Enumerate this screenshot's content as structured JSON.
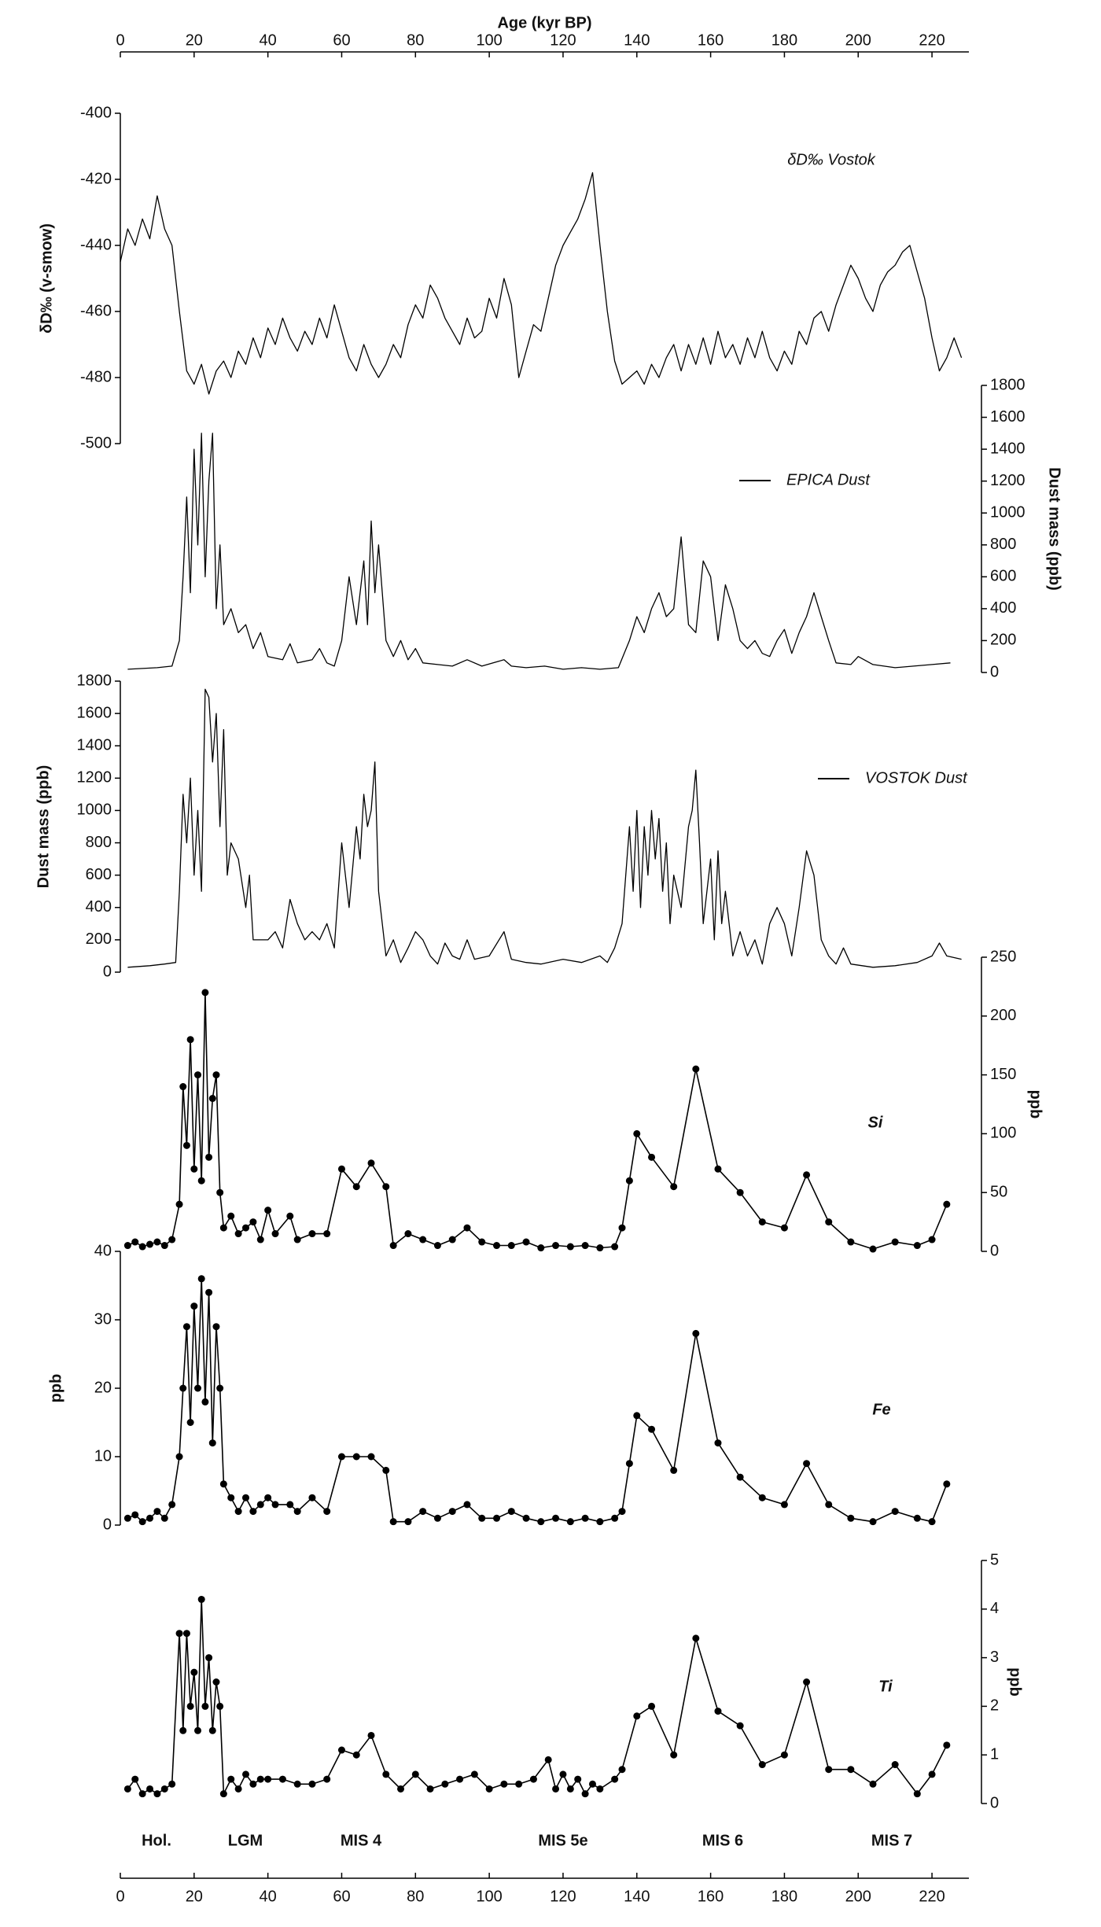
{
  "chart_data": [
    {
      "type": "line",
      "xlabel": "Age (kyr BP)",
      "xaxis_position": "top",
      "xlim": [
        0,
        230
      ],
      "xticks": [
        0,
        20,
        40,
        60,
        80,
        100,
        120,
        140,
        160,
        180,
        200,
        220
      ],
      "ylabel": "δD‰ (v-smow)",
      "y_axis_position": "left",
      "ylim": [
        -500,
        -400
      ],
      "yticks": [
        -400,
        -420,
        -440,
        -460,
        -480,
        -500
      ],
      "annotation": "δD‰ Vostok",
      "markers": false,
      "x": [
        0,
        2,
        4,
        6,
        8,
        10,
        12,
        14,
        16,
        18,
        20,
        22,
        24,
        26,
        28,
        30,
        32,
        34,
        36,
        38,
        40,
        42,
        44,
        46,
        48,
        50,
        52,
        54,
        56,
        58,
        60,
        62,
        64,
        66,
        68,
        70,
        72,
        74,
        76,
        78,
        80,
        82,
        84,
        86,
        88,
        90,
        92,
        94,
        96,
        98,
        100,
        102,
        104,
        106,
        108,
        110,
        112,
        114,
        116,
        118,
        120,
        122,
        124,
        126,
        128,
        130,
        132,
        134,
        136,
        138,
        140,
        142,
        144,
        146,
        148,
        150,
        152,
        154,
        156,
        158,
        160,
        162,
        164,
        166,
        168,
        170,
        172,
        174,
        176,
        178,
        180,
        182,
        184,
        186,
        188,
        190,
        192,
        194,
        196,
        198,
        200,
        202,
        204,
        206,
        208,
        210,
        212,
        214,
        216,
        218,
        220,
        222,
        224,
        226,
        228
      ],
      "series": [
        {
          "color": "#000000",
          "values": [
            -445,
            -435,
            -440,
            -432,
            -438,
            -425,
            -435,
            -440,
            -460,
            -478,
            -482,
            -476,
            -485,
            -478,
            -475,
            -480,
            -472,
            -476,
            -468,
            -474,
            -465,
            -470,
            -462,
            -468,
            -472,
            -466,
            -470,
            -462,
            -468,
            -458,
            -466,
            -474,
            -478,
            -470,
            -476,
            -480,
            -476,
            -470,
            -474,
            -464,
            -458,
            -462,
            -452,
            -456,
            -462,
            -466,
            -470,
            -462,
            -468,
            -466,
            -456,
            -462,
            -450,
            -458,
            -480,
            -472,
            -464,
            -466,
            -456,
            -446,
            -440,
            -436,
            -432,
            -426,
            -418,
            -440,
            -460,
            -475,
            -482,
            -480,
            -478,
            -482,
            -476,
            -480,
            -474,
            -470,
            -478,
            -470,
            -476,
            -468,
            -476,
            -466,
            -474,
            -470,
            -476,
            -468,
            -474,
            -466,
            -474,
            -478,
            -472,
            -476,
            -466,
            -470,
            -462,
            -460,
            -466,
            -458,
            -452,
            -446,
            -450,
            -456,
            -460,
            -452,
            -448,
            -446,
            -442,
            -440,
            -448,
            -456,
            -468,
            -478,
            -474,
            -468,
            -474
          ]
        }
      ]
    },
    {
      "type": "line",
      "xlim": [
        0,
        230
      ],
      "ylabel": "Dust mass (ppb)",
      "y_axis_position": "right",
      "ylim": [
        0,
        1800
      ],
      "yticks": [
        0,
        200,
        400,
        600,
        800,
        1000,
        1200,
        1400,
        1600,
        1800
      ],
      "markers": false,
      "x": [
        2,
        6,
        10,
        14,
        16,
        17,
        18,
        19,
        20,
        21,
        22,
        23,
        24,
        25,
        26,
        27,
        28,
        30,
        32,
        34,
        36,
        38,
        40,
        44,
        46,
        48,
        52,
        54,
        56,
        58,
        60,
        62,
        64,
        66,
        67,
        68,
        69,
        70,
        72,
        74,
        76,
        78,
        80,
        82,
        86,
        90,
        94,
        98,
        104,
        106,
        110,
        115,
        120,
        125,
        130,
        135,
        138,
        140,
        142,
        144,
        146,
        148,
        150,
        152,
        154,
        156,
        158,
        160,
        162,
        164,
        166,
        168,
        170,
        172,
        174,
        176,
        178,
        180,
        182,
        184,
        186,
        188,
        190,
        192,
        194,
        198,
        200,
        204,
        210,
        215,
        220,
        225
      ],
      "series": [
        {
          "name": "EPICA Dust",
          "color": "#000000",
          "values": [
            20,
            25,
            30,
            40,
            200,
            600,
            1100,
            500,
            1400,
            800,
            1500,
            600,
            1200,
            1500,
            400,
            800,
            300,
            400,
            250,
            300,
            150,
            250,
            100,
            80,
            180,
            60,
            80,
            150,
            60,
            40,
            200,
            600,
            300,
            700,
            300,
            950,
            500,
            800,
            200,
            100,
            200,
            80,
            150,
            60,
            50,
            40,
            80,
            40,
            80,
            40,
            30,
            40,
            20,
            30,
            20,
            30,
            200,
            350,
            250,
            400,
            500,
            350,
            400,
            850,
            300,
            250,
            700,
            600,
            200,
            550,
            400,
            200,
            150,
            200,
            120,
            100,
            200,
            270,
            120,
            250,
            350,
            500,
            350,
            200,
            60,
            50,
            100,
            50,
            30,
            40,
            50,
            60
          ]
        }
      ]
    },
    {
      "type": "line",
      "xlim": [
        0,
        230
      ],
      "ylabel": "Dust mass (ppb)",
      "y_axis_position": "left",
      "ylim": [
        0,
        1800
      ],
      "yticks": [
        0,
        200,
        400,
        600,
        800,
        1000,
        1200,
        1400,
        1600,
        1800
      ],
      "markers": false,
      "x": [
        2,
        8,
        12,
        15,
        16,
        17,
        18,
        19,
        20,
        21,
        22,
        23,
        24,
        25,
        26,
        27,
        28,
        29,
        30,
        32,
        34,
        35,
        36,
        38,
        40,
        42,
        44,
        46,
        48,
        50,
        52,
        54,
        56,
        58,
        60,
        62,
        64,
        65,
        66,
        67,
        68,
        69,
        70,
        72,
        74,
        76,
        78,
        80,
        82,
        84,
        86,
        88,
        90,
        92,
        94,
        96,
        100,
        104,
        106,
        110,
        114,
        120,
        125,
        130,
        132,
        134,
        136,
        138,
        139,
        140,
        141,
        142,
        143,
        144,
        145,
        146,
        147,
        148,
        149,
        150,
        152,
        154,
        155,
        156,
        157,
        158,
        160,
        161,
        162,
        163,
        164,
        166,
        168,
        170,
        172,
        174,
        176,
        178,
        180,
        182,
        184,
        186,
        188,
        190,
        192,
        194,
        196,
        198,
        204,
        210,
        216,
        220,
        222,
        224,
        228
      ],
      "series": [
        {
          "name": "VOSTOK Dust",
          "color": "#000000",
          "values": [
            30,
            40,
            50,
            60,
            500,
            1100,
            800,
            1200,
            600,
            1000,
            500,
            1750,
            1700,
            1300,
            1600,
            900,
            1500,
            600,
            800,
            700,
            400,
            600,
            200,
            200,
            200,
            250,
            150,
            450,
            300,
            200,
            250,
            200,
            300,
            150,
            800,
            400,
            900,
            700,
            1100,
            900,
            1000,
            1300,
            500,
            100,
            200,
            60,
            150,
            250,
            200,
            100,
            50,
            180,
            100,
            80,
            200,
            80,
            100,
            250,
            80,
            60,
            50,
            80,
            60,
            100,
            60,
            150,
            300,
            900,
            500,
            1000,
            400,
            900,
            600,
            1000,
            700,
            950,
            500,
            800,
            300,
            600,
            400,
            900,
            1000,
            1250,
            800,
            300,
            700,
            200,
            750,
            300,
            500,
            100,
            250,
            100,
            200,
            50,
            300,
            400,
            300,
            100,
            400,
            750,
            600,
            200,
            100,
            50,
            150,
            50,
            30,
            40,
            60,
            100,
            180,
            100,
            80
          ]
        }
      ]
    },
    {
      "type": "line",
      "xlim": [
        0,
        230
      ],
      "ylabel": "ppb",
      "y_axis_position": "right",
      "ylim": [
        0,
        250
      ],
      "yticks": [
        0,
        50,
        100,
        150,
        200,
        250
      ],
      "annotation": "Si",
      "markers": true,
      "x": [
        2,
        4,
        6,
        8,
        10,
        12,
        14,
        16,
        17,
        18,
        19,
        20,
        21,
        22,
        23,
        24,
        25,
        26,
        27,
        28,
        30,
        32,
        34,
        36,
        38,
        40,
        42,
        46,
        48,
        52,
        56,
        60,
        64,
        68,
        72,
        74,
        78,
        82,
        86,
        90,
        94,
        98,
        102,
        106,
        110,
        114,
        118,
        122,
        126,
        130,
        134,
        136,
        138,
        140,
        144,
        150,
        156,
        162,
        168,
        174,
        180,
        186,
        192,
        198,
        204,
        210,
        216,
        220,
        224
      ],
      "series": [
        {
          "color": "#000000",
          "values": [
            5,
            8,
            4,
            6,
            8,
            5,
            10,
            40,
            140,
            90,
            180,
            70,
            150,
            60,
            220,
            80,
            130,
            150,
            50,
            20,
            30,
            15,
            20,
            25,
            10,
            35,
            15,
            30,
            10,
            15,
            15,
            70,
            55,
            75,
            55,
            5,
            15,
            10,
            5,
            10,
            20,
            8,
            5,
            5,
            8,
            3,
            5,
            4,
            5,
            3,
            4,
            20,
            60,
            100,
            80,
            55,
            155,
            70,
            50,
            25,
            20,
            65,
            25,
            8,
            2,
            8,
            5,
            10,
            40
          ]
        }
      ]
    },
    {
      "type": "line",
      "xlim": [
        0,
        230
      ],
      "ylabel": "ppb",
      "y_axis_position": "left",
      "ylim": [
        0,
        40
      ],
      "yticks": [
        0,
        10,
        20,
        30,
        40
      ],
      "annotation": "Fe",
      "markers": true,
      "x": [
        2,
        4,
        6,
        8,
        10,
        12,
        14,
        16,
        17,
        18,
        19,
        20,
        21,
        22,
        23,
        24,
        25,
        26,
        27,
        28,
        30,
        32,
        34,
        36,
        38,
        40,
        42,
        46,
        48,
        52,
        56,
        60,
        64,
        68,
        72,
        74,
        78,
        82,
        86,
        90,
        94,
        98,
        102,
        106,
        110,
        114,
        118,
        122,
        126,
        130,
        134,
        136,
        138,
        140,
        144,
        150,
        156,
        162,
        168,
        174,
        180,
        186,
        192,
        198,
        204,
        210,
        216,
        220,
        224
      ],
      "series": [
        {
          "color": "#000000",
          "values": [
            1,
            1.5,
            0.5,
            1,
            2,
            1,
            3,
            10,
            20,
            29,
            15,
            32,
            20,
            36,
            18,
            34,
            12,
            29,
            20,
            6,
            4,
            2,
            4,
            2,
            3,
            4,
            3,
            3,
            2,
            4,
            2,
            10,
            10,
            10,
            8,
            0.5,
            0.5,
            2,
            1,
            2,
            3,
            1,
            1,
            2,
            1,
            0.5,
            1,
            0.5,
            1,
            0.5,
            1,
            2,
            9,
            16,
            14,
            8,
            28,
            12,
            7,
            4,
            3,
            9,
            3,
            1,
            0.5,
            2,
            1,
            0.5,
            6
          ]
        }
      ]
    },
    {
      "type": "line",
      "xaxis_position": "bottom",
      "xlim": [
        0,
        230
      ],
      "xticks": [
        0,
        20,
        40,
        60,
        80,
        100,
        120,
        140,
        160,
        180,
        200,
        220
      ],
      "ylabel": "ppb",
      "y_axis_position": "right",
      "ylim": [
        0,
        5
      ],
      "yticks": [
        0,
        1,
        2,
        3,
        4,
        5
      ],
      "annotation": "Ti",
      "markers": true,
      "periods": [
        "Hol.",
        "LGM",
        "MIS 4",
        "MIS 5e",
        "MIS 6",
        "MIS 7"
      ],
      "x": [
        2,
        4,
        6,
        8,
        10,
        12,
        14,
        16,
        17,
        18,
        19,
        20,
        21,
        22,
        23,
        24,
        25,
        26,
        27,
        28,
        30,
        32,
        34,
        36,
        38,
        40,
        44,
        48,
        52,
        56,
        60,
        64,
        68,
        72,
        76,
        80,
        84,
        88,
        92,
        96,
        100,
        104,
        108,
        112,
        116,
        118,
        120,
        122,
        124,
        126,
        128,
        130,
        134,
        136,
        140,
        144,
        150,
        156,
        162,
        168,
        174,
        180,
        186,
        192,
        198,
        204,
        210,
        216,
        220,
        224
      ],
      "series": [
        {
          "color": "#000000",
          "values": [
            0.3,
            0.5,
            0.2,
            0.3,
            0.2,
            0.3,
            0.4,
            3.5,
            1.5,
            3.5,
            2,
            2.7,
            1.5,
            4.2,
            2,
            3,
            1.5,
            2.5,
            2,
            0.2,
            0.5,
            0.3,
            0.6,
            0.4,
            0.5,
            0.5,
            0.5,
            0.4,
            0.4,
            0.5,
            1.1,
            1,
            1.4,
            0.6,
            0.3,
            0.6,
            0.3,
            0.4,
            0.5,
            0.6,
            0.3,
            0.4,
            0.4,
            0.5,
            0.9,
            0.3,
            0.6,
            0.3,
            0.5,
            0.2,
            0.4,
            0.3,
            0.5,
            0.7,
            1.8,
            2,
            1,
            3.4,
            1.9,
            1.6,
            0.8,
            1,
            2.5,
            0.7,
            0.7,
            0.4,
            0.8,
            0.2,
            0.6,
            1.2
          ]
        }
      ]
    }
  ]
}
